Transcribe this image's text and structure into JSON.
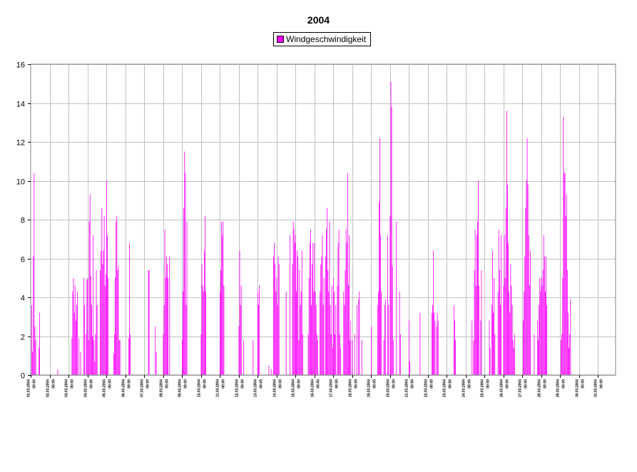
{
  "chart_data": {
    "type": "bar",
    "title": "2004",
    "xlabel": "",
    "ylabel": "",
    "ylim": [
      0,
      16
    ],
    "yticks": [
      0,
      2,
      4,
      6,
      8,
      10,
      12,
      14,
      16
    ],
    "grid": true,
    "legend_position": "top-center",
    "series": [
      {
        "name": "Windgeschwindigkeit",
        "color": "#ff00ff",
        "daily_values": [
          [
            0,
            3.6,
            1.2,
            6.1,
            10.4,
            2.5,
            1.8,
            0,
            0,
            0,
            1.4,
            3.2,
            0,
            0,
            0,
            0,
            0,
            0,
            0,
            0,
            0,
            0,
            0,
            0
          ],
          [
            0,
            0,
            0,
            0,
            0,
            0,
            0,
            0,
            0,
            0,
            0.3,
            0,
            0,
            0,
            0,
            0,
            0,
            0,
            0,
            0,
            0,
            0,
            0,
            0
          ],
          [
            0,
            0,
            0,
            0,
            1.9,
            4.3,
            5.0,
            3.2,
            4.6,
            2.8,
            3.6,
            4.3,
            0,
            1.9,
            0,
            1.2,
            0,
            0,
            0,
            5.0,
            3.6,
            0,
            2.1,
            4.9
          ],
          [
            5.0,
            1.8,
            7.9,
            9.3,
            5.1,
            3.6,
            2.0,
            7.2,
            1.8,
            0.7,
            2.1,
            5.4,
            3.6,
            0,
            0,
            0,
            5.4,
            6.4,
            8.6,
            5.7,
            6.4,
            8.2,
            4.6,
            5.2
          ],
          [
            10.0,
            7.2,
            5.0,
            0,
            0,
            0,
            0,
            0,
            0,
            1.1,
            2.1,
            5.0,
            7.9,
            8.2,
            5.4,
            5.6,
            1.8,
            1.8,
            0,
            0,
            0,
            0,
            0,
            0
          ],
          [
            0,
            0,
            0,
            0,
            1.9,
            6.8,
            2.1,
            0,
            0,
            0,
            0,
            0,
            0,
            0,
            0,
            0,
            0,
            0,
            0,
            0,
            0,
            0,
            0,
            0
          ],
          [
            0,
            0,
            0,
            0,
            0,
            5.4,
            5.4,
            0,
            0,
            0,
            0,
            0,
            0,
            0,
            2.5,
            1.2,
            0,
            0,
            0,
            0,
            0,
            0,
            0,
            0
          ],
          [
            2.1,
            3.6,
            7.5,
            5.0,
            6.1,
            5.7,
            5.0,
            0,
            6.1,
            0,
            0,
            0,
            0,
            0,
            0,
            0,
            0,
            0,
            0,
            0,
            0,
            0,
            0,
            0
          ],
          [
            1.8,
            4.3,
            8.6,
            11.5,
            10.4,
            3.6,
            7.9,
            0,
            0,
            0,
            0,
            0,
            0,
            0,
            0,
            0,
            0,
            0,
            0,
            0,
            0,
            0,
            0,
            0
          ],
          [
            2.1,
            5.7,
            4.6,
            4.3,
            6.4,
            8.2,
            4.3,
            0,
            0,
            0,
            0,
            0,
            0,
            0,
            0,
            0,
            0,
            0,
            0,
            0,
            0,
            0,
            0,
            0
          ],
          [
            4.3,
            5.4,
            7.9,
            7.2,
            7.9,
            4.6,
            0,
            0,
            0,
            0,
            0,
            0,
            0,
            0,
            0,
            0,
            0,
            0,
            0,
            0,
            0,
            0,
            0,
            0
          ],
          [
            2.5,
            6.4,
            3.6,
            4.6,
            0,
            0,
            1.8,
            0,
            0,
            0,
            0,
            0,
            0,
            0,
            0,
            0,
            0,
            0,
            1.8,
            0,
            0,
            0,
            0,
            0
          ],
          [
            4.3,
            3.6,
            4.6,
            0,
            0,
            0,
            0,
            0,
            0,
            0,
            0,
            0,
            0,
            0,
            0.5,
            0,
            0,
            0.3,
            0,
            0,
            6.1,
            6.8,
            5.7,
            4.3
          ],
          [
            5.0,
            3.6,
            6.1,
            5.7,
            0,
            0,
            0,
            0,
            0,
            0,
            0,
            0,
            4.3,
            0,
            0,
            0,
            0,
            7.2,
            0,
            0,
            5.7,
            7.9,
            7.5,
            6.8
          ],
          [
            7.2,
            4.3,
            6.4,
            6.1,
            1.8,
            5.4,
            3.6,
            4.3,
            6.4,
            2.1,
            0,
            0,
            0,
            0,
            0,
            0,
            2.1,
            5.0,
            6.8,
            7.5,
            3.6,
            5.7,
            6.8,
            4.3
          ],
          [
            6.8,
            4.3,
            3.6,
            2.1,
            1.8,
            0,
            0,
            4.3,
            5.7,
            6.1,
            7.2,
            3.6,
            5.0,
            0,
            6.1,
            7.5,
            8.6,
            5.4,
            4.3,
            7.9,
            3.6,
            2.1,
            4.6,
            1.4
          ],
          [
            5.0,
            4.3,
            2.1,
            3.6,
            0,
            4.6,
            6.8,
            7.5,
            2.1,
            1.4,
            0,
            0,
            0,
            4.3,
            3.6,
            5.4,
            7.5,
            6.8,
            10.4,
            4.6,
            7.2,
            1.8,
            2.8,
            0
          ],
          [
            1.8,
            0,
            0,
            2.1,
            0,
            0,
            3.6,
            0,
            3.9,
            4.3,
            0,
            0,
            1.8,
            0,
            0,
            0,
            0,
            0,
            0,
            0,
            0,
            0,
            0,
            0
          ],
          [
            2.5,
            0,
            0,
            0,
            0,
            0,
            0,
            0,
            3.6,
            4.3,
            8.9,
            12.2,
            7.2,
            4.3,
            0,
            0,
            1.8,
            3.6,
            3.9,
            0,
            0,
            7.2,
            3.6,
            0
          ],
          [
            8.2,
            15.1,
            13.8,
            5.6,
            1.8,
            0,
            0,
            0,
            7.9,
            0,
            0,
            0,
            4.3,
            2.1,
            0,
            0,
            0,
            0,
            0,
            0,
            0,
            0,
            0,
            0
          ],
          [
            2.8,
            0.7,
            0,
            0,
            0,
            0,
            0,
            0,
            0,
            0,
            0,
            0,
            0,
            0,
            3.2,
            0,
            0,
            0,
            0,
            0,
            0,
            0,
            0,
            0
          ],
          [
            0,
            0,
            0,
            0,
            0,
            3.2,
            3.6,
            6.4,
            3.2,
            2.8,
            0,
            2.5,
            3.2,
            2.8,
            0,
            0,
            0,
            0,
            0,
            0,
            0,
            0,
            0,
            0
          ],
          [
            0,
            0,
            0,
            0,
            0,
            0,
            0,
            0,
            0,
            3.6,
            2.8,
            1.8,
            0,
            0,
            0,
            0,
            0,
            0,
            0,
            0,
            0,
            0,
            0,
            0
          ],
          [
            0,
            0,
            0,
            0,
            0,
            0,
            0,
            0,
            2.8,
            0,
            1.8,
            5.4,
            7.5,
            4.6,
            7.2,
            7.9,
            10.0,
            4.6,
            0,
            2.8,
            5.4,
            0,
            0,
            0
          ],
          [
            0,
            0,
            0,
            0,
            0,
            0,
            2.8,
            1.4,
            0,
            3.6,
            6.4,
            3.2,
            5.0,
            2.1,
            0,
            0,
            0,
            4.3,
            7.5,
            5.4,
            3.6,
            7.2,
            0,
            0
          ],
          [
            4.6,
            7.2,
            5.0,
            8.6,
            13.6,
            9.8,
            6.8,
            4.3,
            3.2,
            5.7,
            4.6,
            3.6,
            1.8,
            1.4,
            2.1,
            0,
            0,
            0,
            0,
            0,
            0,
            0,
            0,
            0
          ],
          [
            0,
            2.8,
            4.3,
            6.1,
            8.6,
            10.0,
            12.2,
            9.8,
            7.2,
            4.6,
            6.4,
            0,
            0,
            0,
            0,
            2.1,
            0,
            0,
            0,
            2.8,
            1.8,
            3.6,
            5.0,
            4.3
          ],
          [
            5.0,
            4.6,
            5.4,
            7.2,
            6.1,
            4.3,
            6.1,
            3.6,
            0,
            0,
            0,
            0,
            0,
            0,
            0,
            0,
            0,
            0,
            0,
            0,
            0,
            0,
            0,
            0
          ],
          [
            0,
            1.8,
            2.1,
            5.0,
            13.3,
            10.4,
            10.4,
            8.2,
            9.3,
            5.4,
            3.2,
            1.4,
            2.1,
            3.9,
            0,
            0,
            0,
            0,
            0,
            0,
            0,
            0,
            0,
            0
          ]
        ]
      }
    ],
    "x_tick_labels": [
      "01.03.2004 00:00",
      "02.03.2004 00:00",
      "03.03.2004 00:00",
      "04.03.2004 00:00",
      "05.03.2004 00:00",
      "06.03.2004 00:00",
      "07.03.2004 00:00",
      "08.03.2004 00:00",
      "09.03.2004 00:00",
      "10.03.2004 00:00",
      "11.03.2004 00:00",
      "12.03.2004 00:00",
      "13.03.2004 00:00",
      "14.03.2004 00:00",
      "15.03.2004 00:00",
      "16.03.2004 00:00",
      "17.03.2004 00:00",
      "18.03.2004 00:00",
      "19.03.2004 00:00",
      "20.03.2004 00:00",
      "21.03.2004 00:00",
      "22.03.2004 00:00",
      "23.03.2004 00:00",
      "24.03.2004 00:00",
      "25.03.2004 00:00",
      "26.03.2004 00:00",
      "27.03.2004 00:00",
      "28.03.2004 00:00",
      "29.03.2004 00:00",
      "30.03.2004 00:00",
      "31.03.2004 00:00"
    ],
    "x_start": "01.03.2004 00:00",
    "x_step": "1 hour"
  }
}
